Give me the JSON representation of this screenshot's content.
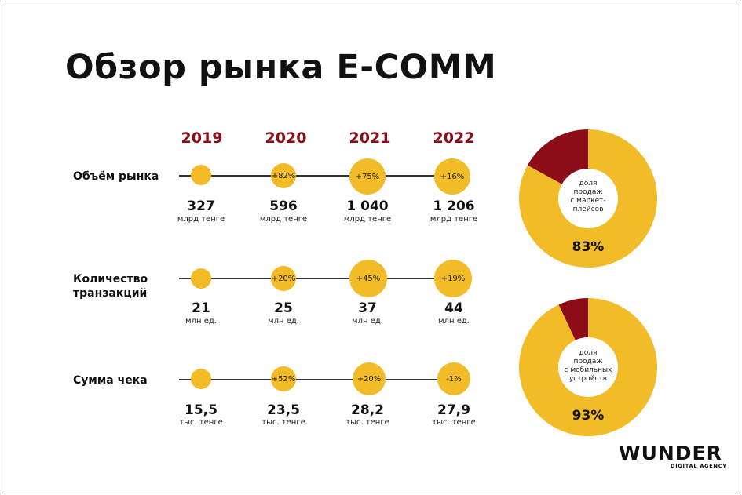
{
  "title": "Обзор рынка E-COMM",
  "brand": {
    "name": "WUNDER",
    "tagline": "DIGITAL AGENCY"
  },
  "colors": {
    "accent": "#f2bb28",
    "dark_red": "#8c0d18",
    "text": "#111111"
  },
  "chart_data": [
    {
      "type": "bubble-timeline",
      "categories": [
        "2019",
        "2020",
        "2021",
        "2022"
      ],
      "rows": [
        {
          "label": "Объём рынка",
          "values": [
            "327",
            "596",
            "1 040",
            "1 206"
          ],
          "numeric": [
            327,
            596,
            1040,
            1206
          ],
          "unit": "млрд тенге",
          "growth": [
            "",
            "+82%",
            "+75%",
            "+16%"
          ]
        },
        {
          "label_lines": [
            "Количество",
            "транзакций"
          ],
          "values": [
            "21",
            "25",
            "37",
            "44"
          ],
          "numeric": [
            21,
            25,
            37,
            44
          ],
          "unit": "млн ед.",
          "growth": [
            "",
            "+20%",
            "+45%",
            "+19%"
          ]
        },
        {
          "label": "Сумма чека",
          "values": [
            "15,5",
            "23,5",
            "28,2",
            "27,9"
          ],
          "numeric": [
            15.5,
            23.5,
            28.2,
            27.9
          ],
          "unit": "тыс. тенге",
          "growth": [
            "",
            "+52%",
            "+20%",
            "-1%"
          ]
        }
      ]
    },
    {
      "type": "pie",
      "label_lines": [
        "доля",
        "продаж",
        "с маркет-",
        "плейсов"
      ],
      "value": 83,
      "value_label": "83%",
      "colors": [
        "#f2bb28",
        "#8c0d18"
      ]
    },
    {
      "type": "pie",
      "label_lines": [
        "доля",
        "продаж",
        "с мобильных",
        "устройств"
      ],
      "value": 93,
      "value_label": "93%",
      "colors": [
        "#f2bb28",
        "#8c0d18"
      ]
    }
  ]
}
